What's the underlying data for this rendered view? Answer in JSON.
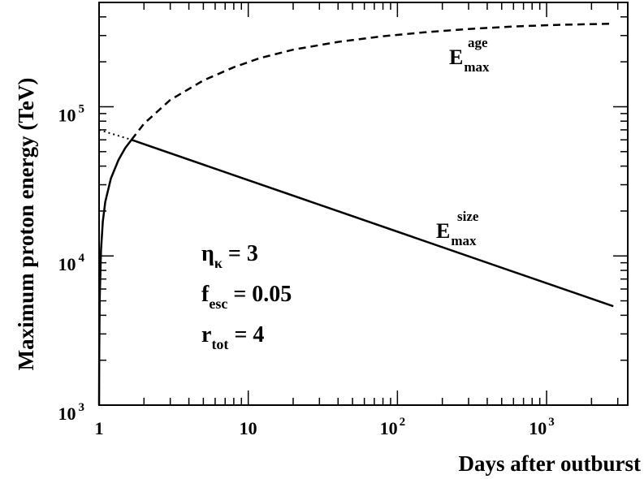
{
  "chart_data": {
    "type": "line",
    "xscale": "log",
    "yscale": "log",
    "xlim": [
      1,
      3500
    ],
    "ylim": [
      1000,
      500000
    ],
    "xlabel": "Days after outburst",
    "ylabel": "Maximum proton energy (TeV)",
    "x_ticks": [
      {
        "base": "1",
        "exp": ""
      },
      {
        "base": "10",
        "exp": ""
      },
      {
        "base": "10",
        "exp": "2"
      },
      {
        "base": "10",
        "exp": "3"
      }
    ],
    "y_ticks": [
      {
        "base": "10",
        "exp": "3"
      },
      {
        "base": "10",
        "exp": "4"
      },
      {
        "base": "10",
        "exp": "5"
      }
    ],
    "curve_labels": {
      "age": {
        "main": "E",
        "sub": "max",
        "sup": "age"
      },
      "size": {
        "main": "E",
        "sub": "max",
        "sup": "size"
      }
    },
    "params": [
      {
        "main": "η",
        "sub": "κ",
        "value": " = 3"
      },
      {
        "main": "f",
        "sub": "esc",
        "value": " = 0.05"
      },
      {
        "main": "r",
        "sub": "tot",
        "value": " = 4"
      }
    ],
    "series": [
      {
        "style": "dashed",
        "x": [
          1.65,
          2,
          3,
          5,
          8,
          12,
          20,
          40,
          80,
          150,
          300,
          600,
          1200,
          2800
        ],
        "y": [
          60000,
          77000,
          111000,
          150000,
          184000,
          212000,
          241000,
          272000,
          297000,
          315000,
          332000,
          345000,
          354000,
          360000
        ]
      },
      {
        "style": "solid",
        "x": [
          1.0,
          1.002,
          1.01,
          1.03,
          1.06,
          1.1,
          1.2,
          1.35,
          1.5,
          1.65
        ],
        "y": [
          1000,
          2300,
          5200,
          11000,
          17000,
          23000,
          33000,
          44000,
          53000,
          60000
        ]
      },
      {
        "style": "solid",
        "x": [
          1.65,
          2800
        ],
        "y": [
          60000,
          4600
        ]
      },
      {
        "style": "dotted",
        "x": [
          1.0,
          1.65
        ],
        "y": [
          70000,
          60000
        ]
      }
    ],
    "grid": false,
    "legend": "none"
  }
}
